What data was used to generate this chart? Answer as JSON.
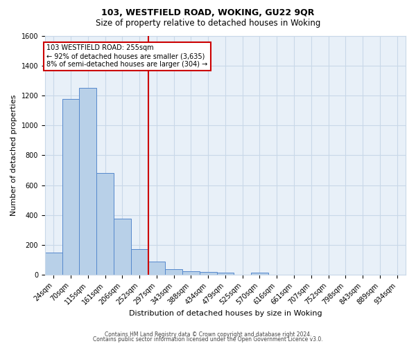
{
  "title": "103, WESTFIELD ROAD, WOKING, GU22 9QR",
  "subtitle": "Size of property relative to detached houses in Woking",
  "xlabel": "Distribution of detached houses by size in Woking",
  "ylabel": "Number of detached properties",
  "footer_line1": "Contains HM Land Registry data © Crown copyright and database right 2024.",
  "footer_line2": "Contains public sector information licensed under the Open Government Licence v3.0.",
  "categories": [
    "24sqm",
    "70sqm",
    "115sqm",
    "161sqm",
    "206sqm",
    "252sqm",
    "297sqm",
    "343sqm",
    "388sqm",
    "434sqm",
    "479sqm",
    "525sqm",
    "570sqm",
    "616sqm",
    "661sqm",
    "707sqm",
    "752sqm",
    "798sqm",
    "843sqm",
    "889sqm",
    "934sqm"
  ],
  "values": [
    150,
    1175,
    1250,
    680,
    375,
    170,
    90,
    38,
    25,
    18,
    15,
    0,
    15,
    0,
    0,
    0,
    0,
    0,
    0,
    0,
    0
  ],
  "bar_color": "#b8d0e8",
  "bar_edge_color": "#5588cc",
  "bar_width": 1.0,
  "vline_x": 5.5,
  "vline_color": "#cc0000",
  "ylim": [
    0,
    1600
  ],
  "yticks": [
    0,
    200,
    400,
    600,
    800,
    1000,
    1200,
    1400,
    1600
  ],
  "grid_color": "#c8d8e8",
  "bg_color": "#e8f0f8",
  "annotation_line1": "103 WESTFIELD ROAD: 255sqm",
  "annotation_line2": "← 92% of detached houses are smaller (3,635)",
  "annotation_line3": "8% of semi-detached houses are larger (304) →",
  "annotation_box_color": "#ffffff",
  "annotation_box_edge": "#cc0000",
  "title_fontsize": 9,
  "subtitle_fontsize": 8.5,
  "xlabel_fontsize": 8,
  "ylabel_fontsize": 8,
  "tick_fontsize": 7,
  "footer_fontsize": 5.5
}
